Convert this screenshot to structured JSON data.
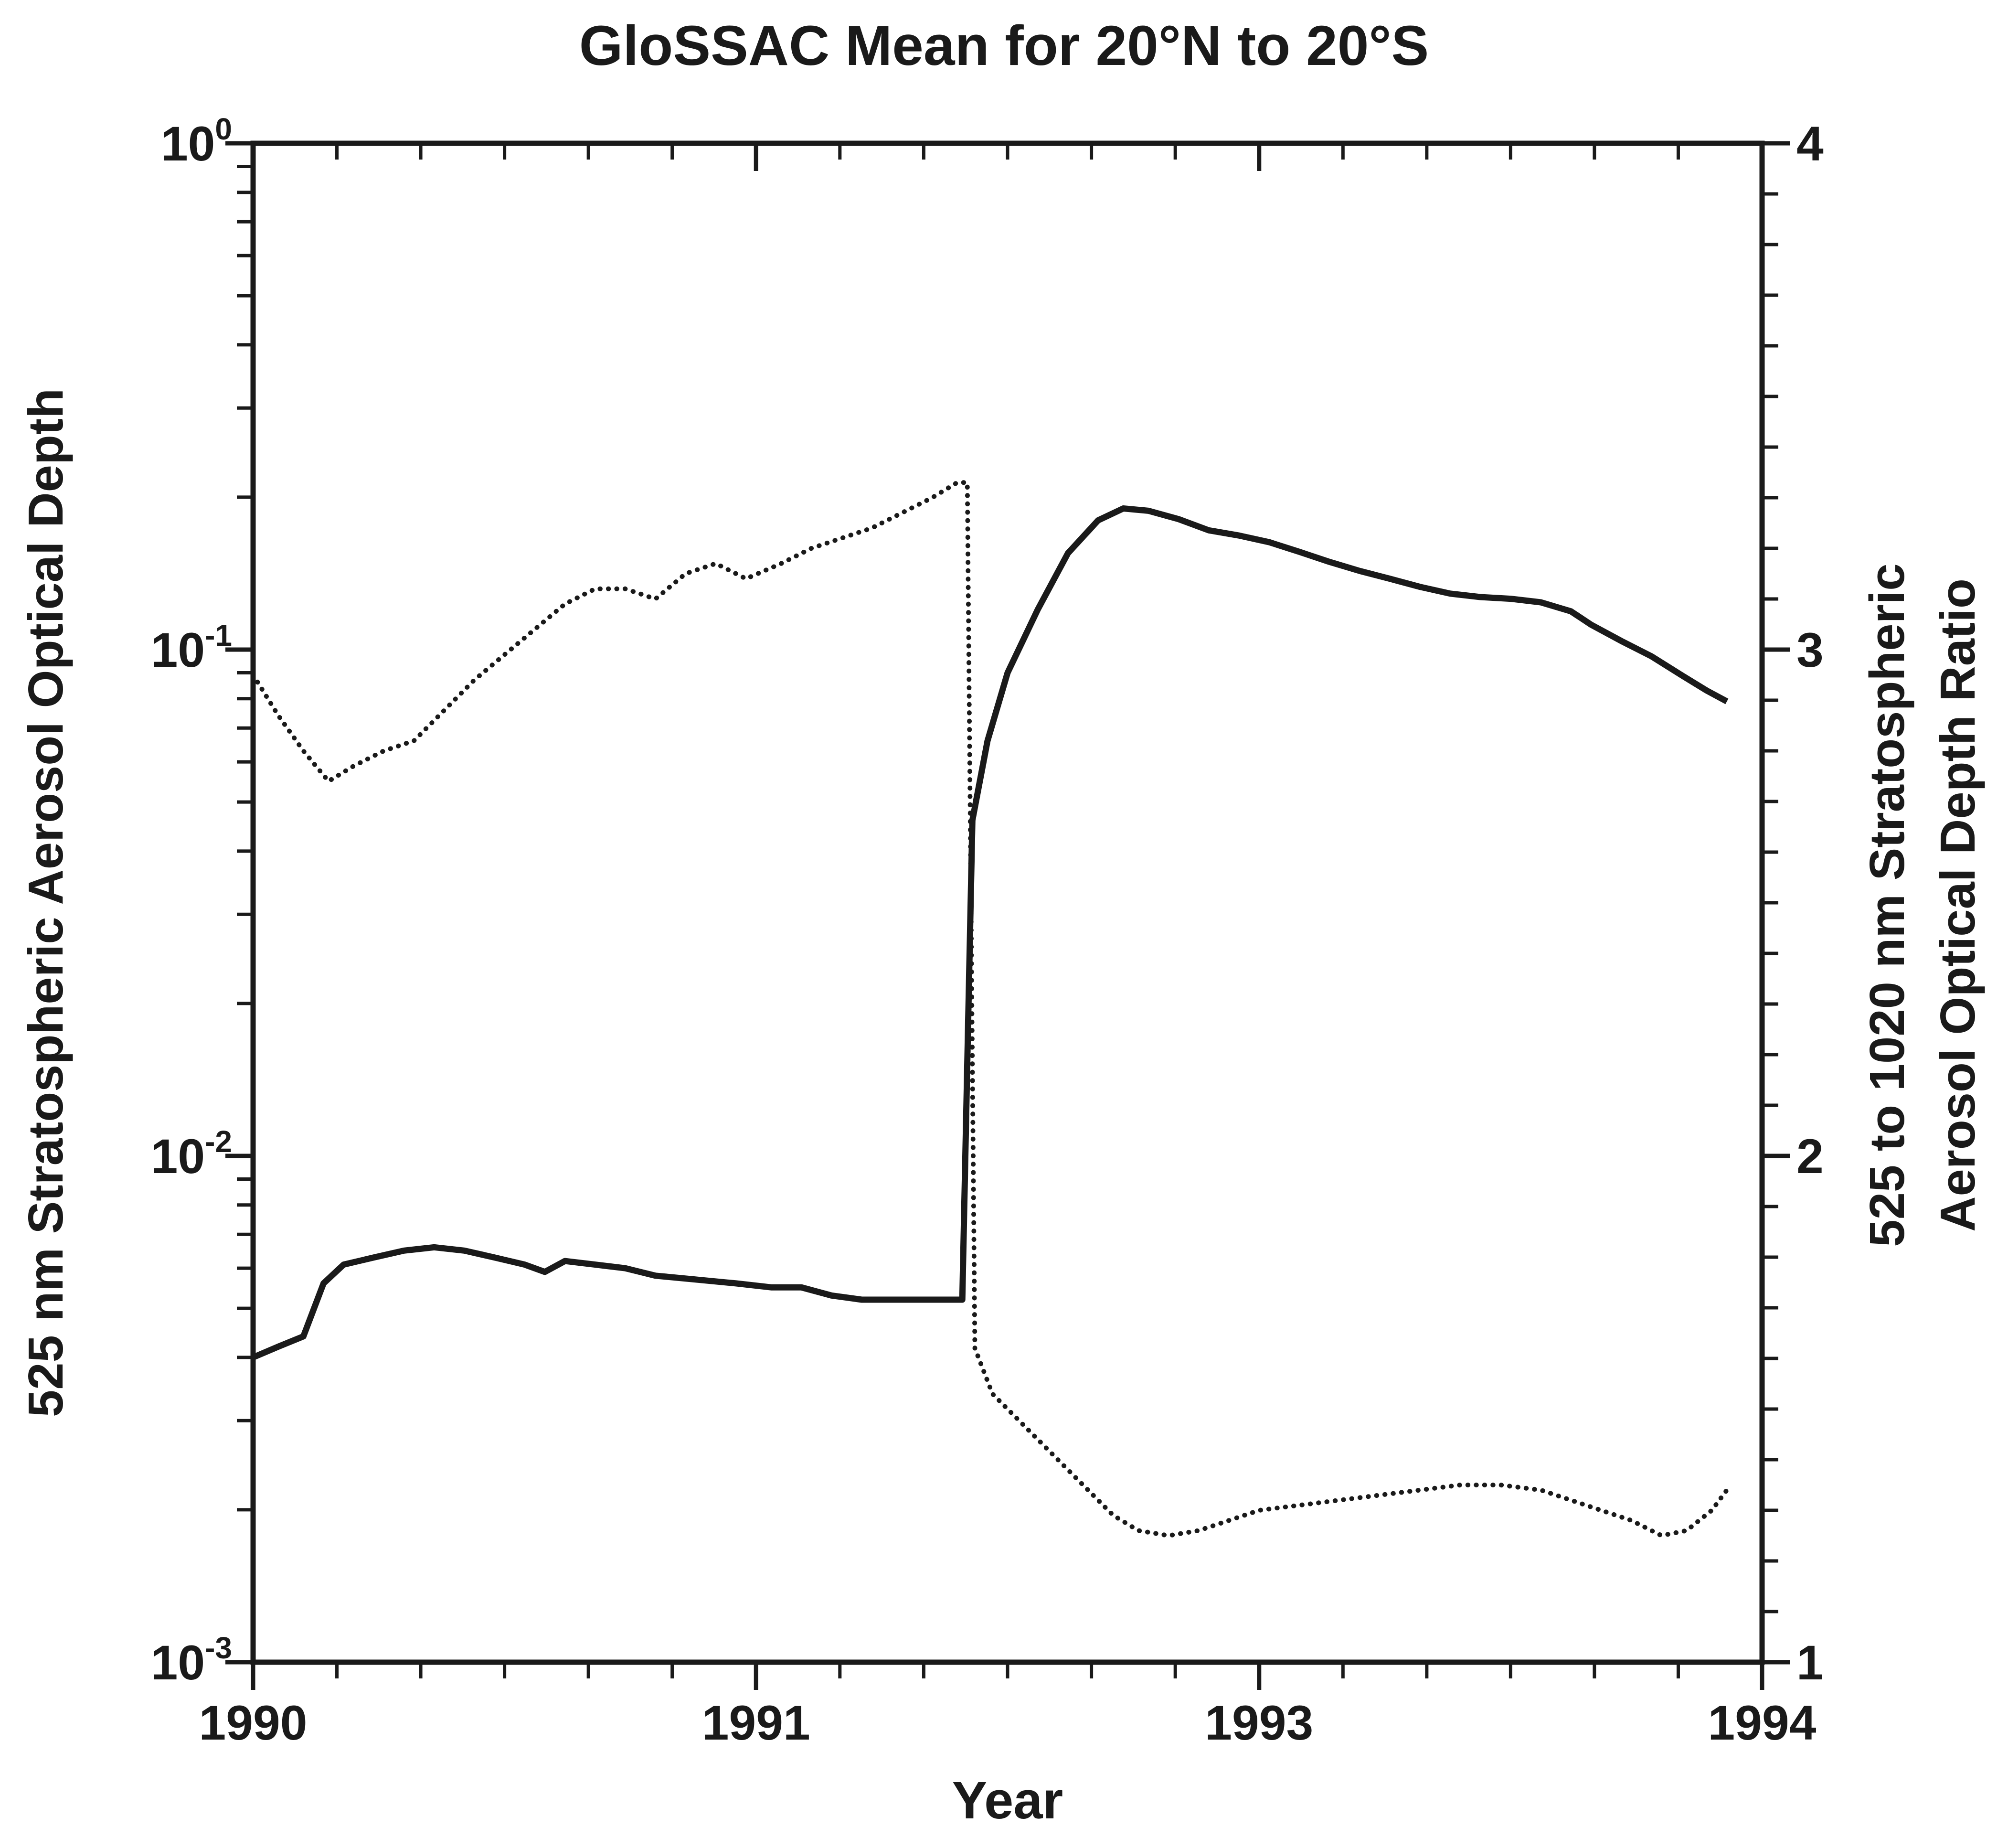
{
  "colors": {
    "foreground": "#1a1a1a",
    "background": "#ffffff"
  },
  "chart_data": {
    "type": "line",
    "title": "GloSSAC Mean for 20°N to 20°S",
    "xlabel": "Year",
    "x_axis": {
      "tick_labels": [
        "1990",
        "1991",
        "1993",
        "1994"
      ],
      "tick_years": [
        1990,
        1991,
        1993,
        1994
      ],
      "tick_positions": [
        0,
        0.3333,
        0.6667,
        1
      ],
      "minor_ticks_per_interval": 5
    },
    "y_left": {
      "label": "525 nm Stratospheric Aerosol Optical Depth",
      "scale": "log",
      "min": 0.001,
      "max": 1,
      "tick_exponents": [
        0,
        -1,
        -2,
        -3
      ]
    },
    "y_right": {
      "label_line1": "525 to 1020 nm Stratospheric",
      "label_line2": "Aerosol Optical Depth Ratio",
      "scale": "linear",
      "min": 1,
      "max": 4,
      "major_step": 1,
      "minor_step": 0.1,
      "tick_labels": [
        "4",
        "3",
        "2",
        "1"
      ]
    },
    "legend": "none",
    "grid": false,
    "series": [
      {
        "name": "525 nm Stratospheric Aerosol Optical Depth",
        "axis": "left",
        "style": "solid",
        "color": "#1a1a1a",
        "points": [
          [
            1990.0,
            0.004
          ],
          [
            1990.05,
            0.0042
          ],
          [
            1990.1,
            0.0044
          ],
          [
            1990.14,
            0.0056
          ],
          [
            1990.18,
            0.0061
          ],
          [
            1990.24,
            0.0063
          ],
          [
            1990.3,
            0.0065
          ],
          [
            1990.36,
            0.0066
          ],
          [
            1990.42,
            0.0065
          ],
          [
            1990.48,
            0.0063
          ],
          [
            1990.54,
            0.0061
          ],
          [
            1990.58,
            0.0059
          ],
          [
            1990.62,
            0.0062
          ],
          [
            1990.68,
            0.0061
          ],
          [
            1990.74,
            0.006
          ],
          [
            1990.8,
            0.0058
          ],
          [
            1990.88,
            0.0057
          ],
          [
            1990.96,
            0.0056
          ],
          [
            1991.06,
            0.0055
          ],
          [
            1991.18,
            0.0055
          ],
          [
            1991.3,
            0.0053
          ],
          [
            1991.42,
            0.0052
          ],
          [
            1991.54,
            0.0052
          ],
          [
            1991.66,
            0.0052
          ],
          [
            1991.78,
            0.0052
          ],
          [
            1991.82,
            0.0052
          ],
          [
            1991.86,
            0.046
          ],
          [
            1991.92,
            0.066
          ],
          [
            1992.0,
            0.09
          ],
          [
            1992.12,
            0.12
          ],
          [
            1992.24,
            0.155
          ],
          [
            1992.36,
            0.18
          ],
          [
            1992.46,
            0.19
          ],
          [
            1992.56,
            0.188
          ],
          [
            1992.68,
            0.181
          ],
          [
            1992.8,
            0.172
          ],
          [
            1992.92,
            0.168
          ],
          [
            1993.02,
            0.163
          ],
          [
            1993.08,
            0.156
          ],
          [
            1993.14,
            0.149
          ],
          [
            1993.2,
            0.143
          ],
          [
            1993.26,
            0.138
          ],
          [
            1993.32,
            0.133
          ],
          [
            1993.38,
            0.129
          ],
          [
            1993.44,
            0.127
          ],
          [
            1993.5,
            0.126
          ],
          [
            1993.56,
            0.124
          ],
          [
            1993.62,
            0.119
          ],
          [
            1993.66,
            0.112
          ],
          [
            1993.72,
            0.104
          ],
          [
            1993.78,
            0.097
          ],
          [
            1993.84,
            0.089
          ],
          [
            1993.89,
            0.083
          ],
          [
            1993.93,
            0.079
          ]
        ]
      },
      {
        "name": "525 to 1020 nm Stratospheric Aerosol Optical Depth Ratio",
        "axis": "right",
        "style": "dotted",
        "color": "#1a1a1a",
        "points": [
          [
            1990.0,
            2.95
          ],
          [
            1990.05,
            2.87
          ],
          [
            1990.1,
            2.8
          ],
          [
            1990.15,
            2.74
          ],
          [
            1990.2,
            2.77
          ],
          [
            1990.26,
            2.8
          ],
          [
            1990.32,
            2.82
          ],
          [
            1990.38,
            2.88
          ],
          [
            1990.44,
            2.94
          ],
          [
            1990.5,
            2.99
          ],
          [
            1990.56,
            3.04
          ],
          [
            1990.62,
            3.09
          ],
          [
            1990.68,
            3.12
          ],
          [
            1990.74,
            3.12
          ],
          [
            1990.8,
            3.1
          ],
          [
            1990.86,
            3.15
          ],
          [
            1990.92,
            3.17
          ],
          [
            1990.98,
            3.14
          ],
          [
            1991.1,
            3.17
          ],
          [
            1991.22,
            3.2
          ],
          [
            1991.34,
            3.22
          ],
          [
            1991.46,
            3.24
          ],
          [
            1991.58,
            3.27
          ],
          [
            1991.7,
            3.3
          ],
          [
            1991.8,
            3.33
          ],
          [
            1991.84,
            3.33
          ],
          [
            1991.87,
            1.62
          ],
          [
            1991.94,
            1.53
          ],
          [
            1992.06,
            1.47
          ],
          [
            1992.18,
            1.41
          ],
          [
            1992.3,
            1.35
          ],
          [
            1992.42,
            1.29
          ],
          [
            1992.52,
            1.26
          ],
          [
            1992.64,
            1.25
          ],
          [
            1992.76,
            1.26
          ],
          [
            1992.88,
            1.28
          ],
          [
            1993.0,
            1.3
          ],
          [
            1993.08,
            1.31
          ],
          [
            1993.16,
            1.32
          ],
          [
            1993.24,
            1.33
          ],
          [
            1993.32,
            1.34
          ],
          [
            1993.4,
            1.35
          ],
          [
            1993.48,
            1.35
          ],
          [
            1993.56,
            1.34
          ],
          [
            1993.62,
            1.32
          ],
          [
            1993.68,
            1.3
          ],
          [
            1993.74,
            1.28
          ],
          [
            1993.8,
            1.25
          ],
          [
            1993.85,
            1.26
          ],
          [
            1993.9,
            1.3
          ],
          [
            1993.93,
            1.34
          ]
        ]
      }
    ]
  }
}
